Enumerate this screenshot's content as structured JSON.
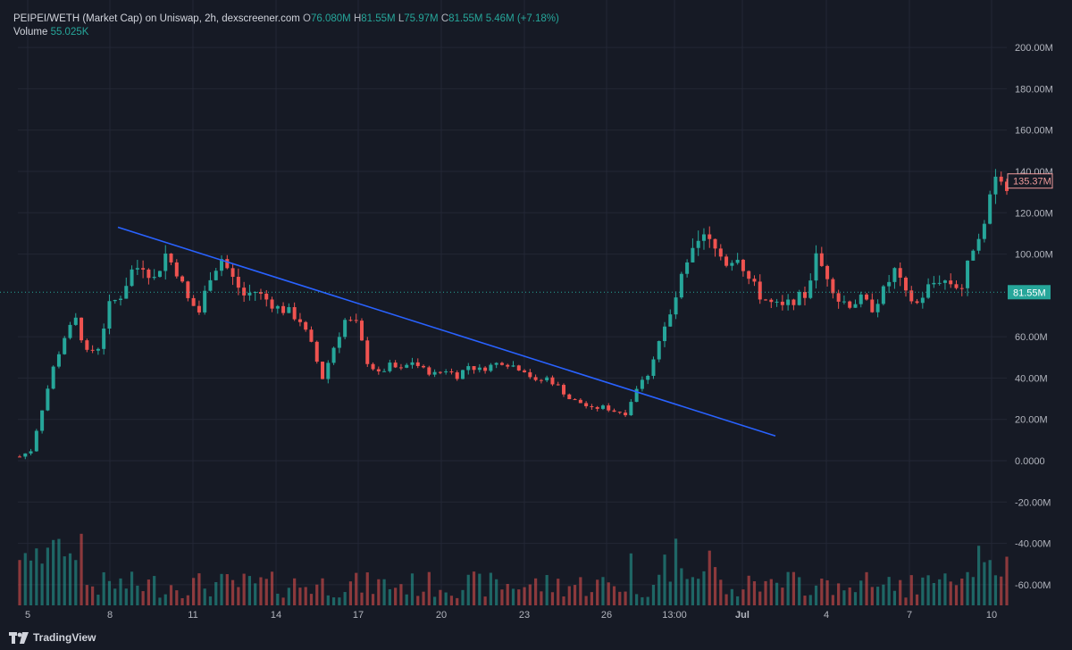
{
  "legend": {
    "title": "PEIPEI/WETH (Market Cap) on Uniswap, 2h, dexscreener.com",
    "o_label": "O",
    "o_value": "76.080M",
    "h_label": "H",
    "h_value": "81.55M",
    "l_label": "L",
    "l_value": "75.97M",
    "c_label": "C",
    "c_value": "81.55M",
    "change": "5.46M (+7.18%)",
    "volume_label": "Volume",
    "volume_value": "55.025K"
  },
  "price_tags": {
    "last": "135.37M",
    "crosshair": "81.55M"
  },
  "branding": "TradingView",
  "colors": {
    "up": "#26a69a",
    "down": "#ef5350",
    "trendline": "#2962ff",
    "grid": "#232735",
    "background": "#161a25"
  },
  "chart_data": {
    "type": "candlestick",
    "y_axis_ticks": [
      "200.00M",
      "180.00M",
      "160.00M",
      "140.00M",
      "120.00M",
      "100.00M",
      "60.00M",
      "40.00M",
      "20.00M",
      "0.0000",
      "-20.00M",
      "-40.00M",
      "-60.00M"
    ],
    "y_range": [
      -70,
      210
    ],
    "x_axis_ticks": [
      "5",
      "8",
      "11",
      "14",
      "17",
      "20",
      "23",
      "26",
      "13:00",
      "Jul",
      "4",
      "7",
      "10"
    ],
    "price_path_market_cap_millions": [
      [
        0,
        2
      ],
      [
        2,
        5
      ],
      [
        4,
        25
      ],
      [
        6,
        45
      ],
      [
        8,
        60
      ],
      [
        10,
        68
      ],
      [
        12,
        52
      ],
      [
        14,
        55
      ],
      [
        16,
        75
      ],
      [
        18,
        80
      ],
      [
        20,
        92
      ],
      [
        22,
        95
      ],
      [
        24,
        88
      ],
      [
        26,
        100
      ],
      [
        28,
        92
      ],
      [
        30,
        78
      ],
      [
        32,
        72
      ],
      [
        34,
        90
      ],
      [
        36,
        98
      ],
      [
        38,
        88
      ],
      [
        40,
        80
      ],
      [
        42,
        82
      ],
      [
        44,
        78
      ],
      [
        46,
        74
      ],
      [
        48,
        72
      ],
      [
        50,
        68
      ],
      [
        52,
        56
      ],
      [
        54,
        40
      ],
      [
        56,
        55
      ],
      [
        58,
        68
      ],
      [
        60,
        66
      ],
      [
        62,
        48
      ],
      [
        64,
        42
      ],
      [
        66,
        46
      ],
      [
        68,
        44
      ],
      [
        70,
        48
      ],
      [
        72,
        44
      ],
      [
        74,
        42
      ],
      [
        76,
        44
      ],
      [
        78,
        41
      ],
      [
        80,
        46
      ],
      [
        82,
        44
      ],
      [
        84,
        46
      ],
      [
        86,
        48
      ],
      [
        88,
        46
      ],
      [
        90,
        44
      ],
      [
        92,
        38
      ],
      [
        94,
        40
      ],
      [
        96,
        36
      ],
      [
        98,
        30
      ],
      [
        100,
        28
      ],
      [
        102,
        25
      ],
      [
        104,
        26
      ],
      [
        106,
        24
      ],
      [
        108,
        23
      ],
      [
        110,
        35
      ],
      [
        112,
        42
      ],
      [
        114,
        58
      ],
      [
        116,
        70
      ],
      [
        118,
        88
      ],
      [
        120,
        100
      ],
      [
        122,
        108
      ],
      [
        124,
        102
      ],
      [
        126,
        96
      ],
      [
        128,
        100
      ],
      [
        130,
        88
      ],
      [
        132,
        80
      ],
      [
        134,
        76
      ],
      [
        136,
        74
      ],
      [
        138,
        78
      ],
      [
        140,
        80
      ],
      [
        142,
        98
      ],
      [
        144,
        90
      ],
      [
        146,
        78
      ],
      [
        148,
        76
      ],
      [
        150,
        78
      ],
      [
        152,
        74
      ],
      [
        154,
        82
      ],
      [
        156,
        92
      ],
      [
        158,
        80
      ],
      [
        160,
        76
      ],
      [
        162,
        84
      ],
      [
        164,
        88
      ],
      [
        166,
        86
      ],
      [
        168,
        84
      ],
      [
        170,
        104
      ],
      [
        172,
        118
      ],
      [
        174,
        140
      ],
      [
        176,
        135
      ]
    ],
    "series": [
      {
        "name": "Volume",
        "type": "histogram"
      }
    ],
    "trendline": {
      "from": [
        "8",
        113
      ],
      "to": [
        "Jul",
        12
      ]
    },
    "last_price_millions": 135.37,
    "crosshair_price_millions": 81.55
  }
}
